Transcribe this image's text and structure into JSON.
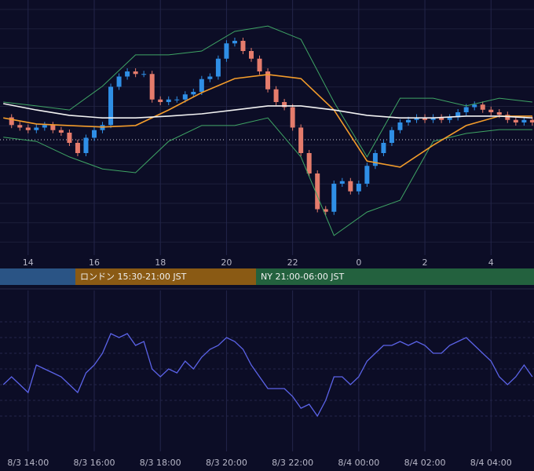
{
  "chart_data": [
    {
      "type": "candlestick",
      "xlim": [
        13.15,
        29.3
      ],
      "ylim": [
        0,
        100
      ],
      "xticks": [
        14,
        16,
        18,
        20,
        22,
        {
          "value": 24,
          "label": "0"
        },
        {
          "value": 26,
          "label": "2"
        },
        {
          "value": 28,
          "label": "4"
        }
      ],
      "up_color": "#2f8fe6",
      "down_color": "#e57c6c",
      "series": [
        {
          "type": "candle",
          "color": "#2f8fe6",
          "x": [
            13.25,
            13.5,
            13.75,
            14,
            14.25,
            14.5,
            14.75,
            15,
            15.25,
            15.5,
            15.75,
            16,
            16.25,
            16.5,
            16.75,
            17,
            17.25,
            17.5,
            17.75,
            18,
            18.25,
            18.5,
            18.75,
            19,
            19.25,
            19.5,
            19.75,
            20,
            20.25,
            20.5,
            20.75,
            21,
            21.25,
            21.5,
            21.75,
            22,
            22.25,
            22.5,
            22.75,
            23,
            23.25,
            23.5,
            23.75,
            24,
            24.25,
            24.5,
            24.75,
            25,
            25.25,
            25.5,
            25.75,
            26,
            26.25,
            26.5,
            26.75,
            27,
            27.25,
            27.5,
            27.75,
            28,
            28.25,
            28.5,
            28.75,
            29,
            29.25
          ],
          "values": [
            54,
            51,
            50,
            49,
            50,
            51,
            49,
            48,
            44,
            40,
            46,
            49,
            51,
            66,
            70,
            72,
            71,
            71,
            61,
            60,
            61,
            61,
            63,
            64,
            69,
            70,
            77,
            83,
            84,
            80,
            77,
            72,
            65,
            60,
            58,
            50,
            40,
            32,
            18,
            17,
            28,
            29,
            25,
            28,
            35,
            40,
            44,
            49,
            52,
            53,
            54,
            53,
            54,
            53,
            54,
            56,
            58,
            59,
            57,
            56,
            55,
            53,
            52,
            53,
            52
          ]
        },
        {
          "type": "line",
          "color": "#3fa565",
          "x": [
            13.25,
            14.25,
            15.25,
            16.25,
            17.25,
            18.25,
            19.25,
            20.25,
            21.25,
            22.25,
            23.25,
            24.25,
            25.25,
            26.25,
            27.25,
            28.25,
            29.25
          ],
          "values": [
            60,
            58.5,
            56.9,
            66.2,
            78.5,
            78.5,
            80,
            87.7,
            89.8,
            84.6,
            60,
            38.5,
            61.5,
            61.5,
            58.5,
            61.5,
            60
          ]
        },
        {
          "type": "line",
          "color": "#3fa565",
          "x": [
            13.25,
            14.25,
            15.25,
            16.25,
            17.25,
            18.25,
            19.25,
            20.25,
            21.25,
            22.25,
            23.25,
            24.25,
            25.25,
            26.25,
            27.25,
            28.25,
            29.25
          ],
          "values": [
            46.2,
            44.6,
            38.5,
            33.8,
            32.3,
            44.6,
            50.8,
            50.8,
            53.8,
            38.5,
            7.7,
            16.9,
            21.5,
            44.6,
            47.7,
            49.2,
            49.2
          ]
        },
        {
          "type": "line",
          "color": "#f39c2b",
          "x": [
            13.25,
            14.25,
            15.25,
            16.25,
            17.25,
            18.25,
            19.25,
            20.25,
            21.25,
            22.25,
            23.25,
            24.25,
            25.25,
            26.25,
            27.25,
            28.25,
            29.25
          ],
          "values": [
            53.8,
            51.4,
            50.8,
            50.2,
            50.8,
            56.9,
            63.7,
            69.2,
            70.8,
            69.2,
            56.9,
            36.9,
            34.5,
            43.1,
            50.8,
            54.5,
            54.5
          ]
        },
        {
          "type": "line",
          "color": "#f2f2f2",
          "x": [
            13.25,
            14.25,
            15.25,
            16.25,
            17.25,
            18.25,
            19.25,
            20.25,
            21.25,
            22.25,
            23.25,
            24.25,
            25.25,
            26.25,
            27.25,
            28.25,
            29.25
          ],
          "values": [
            59.4,
            56.9,
            54.8,
            53.8,
            53.8,
            54.5,
            55.4,
            56.9,
            58.5,
            58.5,
            56.9,
            54.8,
            53.8,
            53.8,
            54.5,
            54.5,
            53.8
          ]
        }
      ]
    },
    {
      "type": "line",
      "xlim": [
        13.15,
        29.3
      ],
      "ylim": [
        0,
        100
      ],
      "xticks": [
        {
          "value": 14,
          "label": "8/3 14:00"
        },
        {
          "value": 16,
          "label": "8/3 16:00"
        },
        {
          "value": 18,
          "label": "8/3 18:00"
        },
        {
          "value": 20,
          "label": "8/3 20:00"
        },
        {
          "value": 22,
          "label": "8/3 22:00"
        },
        {
          "value": 24,
          "label": "8/4 00:00"
        },
        {
          "value": 26,
          "label": "8/4 02:00"
        },
        {
          "value": 28,
          "label": "8/4 04:00"
        }
      ],
      "series": [
        {
          "color": "#5b63e8",
          "x": [
            13.25,
            13.5,
            13.75,
            14,
            14.25,
            14.5,
            14.75,
            15,
            15.25,
            15.5,
            15.75,
            16,
            16.25,
            16.5,
            16.75,
            17,
            17.25,
            17.5,
            17.75,
            18,
            18.25,
            18.5,
            18.75,
            19,
            19.25,
            19.5,
            19.75,
            20,
            20.25,
            20.5,
            20.75,
            21,
            21.25,
            21.5,
            21.75,
            22,
            22.25,
            22.5,
            22.75,
            23,
            23.25,
            23.5,
            23.75,
            24,
            24.25,
            24.5,
            24.75,
            25,
            25.25,
            25.5,
            25.75,
            26,
            26.25,
            26.5,
            26.75,
            27,
            27.25,
            27.5,
            27.75,
            28,
            28.25,
            28.5,
            28.75,
            29,
            29.25
          ],
          "values": [
            40,
            45,
            40,
            35,
            52.5,
            50,
            47.5,
            45,
            40,
            35,
            47.5,
            52.5,
            60,
            72.5,
            70,
            72.5,
            65,
            67.5,
            50,
            45,
            50,
            47.5,
            55,
            50,
            57.5,
            62.5,
            65,
            70,
            67.5,
            62.5,
            52.5,
            45,
            37.5,
            37.5,
            37.5,
            32.5,
            25,
            27.5,
            20,
            30,
            45,
            45,
            40,
            45,
            55,
            60,
            65,
            65,
            67.5,
            65,
            67.5,
            65,
            60,
            60,
            65,
            67.5,
            70,
            65,
            60,
            55,
            45,
            40,
            45,
            52.5,
            45
          ]
        }
      ]
    }
  ],
  "sessions": [
    "ロンドン 15:30-21:00 JST",
    "NY 21:00-06:00 JST"
  ]
}
